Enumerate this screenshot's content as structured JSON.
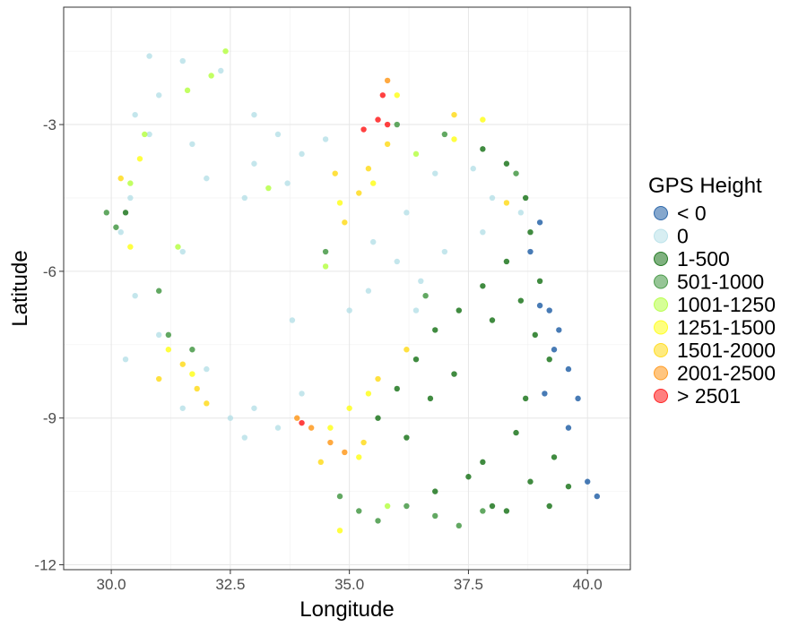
{
  "chart_data": {
    "type": "scatter",
    "title": "",
    "xlabel": "Longitude",
    "ylabel": "Latitude",
    "xlim": [
      29.0,
      40.9
    ],
    "ylim": [
      -12.1,
      -0.6
    ],
    "x_ticks": [
      30.0,
      32.5,
      35.0,
      37.5,
      40.0
    ],
    "x_tick_labels": [
      "30.0",
      "32.5",
      "35.0",
      "37.5",
      "40.0"
    ],
    "y_ticks": [
      -3,
      -6,
      -9,
      -12
    ],
    "y_tick_labels": [
      "-3",
      "-6",
      "-9",
      "-12"
    ],
    "grid": true,
    "legend": {
      "title": "GPS Height",
      "position": "right",
      "entries": [
        {
          "label": "< 0",
          "color": "#0b4f9c"
        },
        {
          "label": "0",
          "color": "#b0dde6"
        },
        {
          "label": "1-500",
          "color": "#006400"
        },
        {
          "label": "501-1000",
          "color": "#2e8b2e"
        },
        {
          "label": "1001-1250",
          "color": "#adff2f"
        },
        {
          "label": "1251-1500",
          "color": "#ffff00"
        },
        {
          "label": "1501-2000",
          "color": "#ffd700"
        },
        {
          "label": "2001-2500",
          "color": "#ff8c00"
        },
        {
          "label": "> 2501",
          "color": "#ff0000"
        }
      ]
    },
    "series": [
      {
        "name": "< 0",
        "color": "#0b4f9c",
        "points": [
          [
            39.0,
            -5.0
          ],
          [
            39.2,
            -6.8
          ],
          [
            39.4,
            -7.2
          ],
          [
            39.6,
            -8.0
          ],
          [
            39.1,
            -8.5
          ],
          [
            39.8,
            -8.6
          ],
          [
            40.0,
            -10.3
          ],
          [
            40.2,
            -10.6
          ],
          [
            39.6,
            -9.2
          ],
          [
            38.8,
            -5.6
          ],
          [
            39.3,
            -7.6
          ],
          [
            39.0,
            -6.7
          ]
        ]
      },
      {
        "name": "0",
        "color": "#b0dde6",
        "points": [
          [
            30.8,
            -1.6
          ],
          [
            31.5,
            -1.7
          ],
          [
            32.3,
            -1.9
          ],
          [
            31.0,
            -2.4
          ],
          [
            30.5,
            -2.8
          ],
          [
            30.8,
            -3.2
          ],
          [
            33.0,
            -2.8
          ],
          [
            33.5,
            -3.2
          ],
          [
            34.0,
            -3.6
          ],
          [
            34.5,
            -3.3
          ],
          [
            33.0,
            -3.8
          ],
          [
            32.8,
            -4.5
          ],
          [
            33.7,
            -4.2
          ],
          [
            32.0,
            -4.1
          ],
          [
            31.7,
            -3.4
          ],
          [
            30.4,
            -4.5
          ],
          [
            30.2,
            -5.2
          ],
          [
            35.5,
            -5.4
          ],
          [
            36.0,
            -5.8
          ],
          [
            36.5,
            -6.2
          ],
          [
            37.0,
            -5.6
          ],
          [
            36.2,
            -4.8
          ],
          [
            36.8,
            -4.0
          ],
          [
            35.4,
            -6.4
          ],
          [
            36.4,
            -6.8
          ],
          [
            31.5,
            -5.6
          ],
          [
            30.5,
            -6.5
          ],
          [
            31.0,
            -7.3
          ],
          [
            33.0,
            -8.8
          ],
          [
            33.5,
            -9.2
          ],
          [
            32.5,
            -9.0
          ],
          [
            34.0,
            -8.5
          ],
          [
            32.0,
            -8.0
          ],
          [
            33.8,
            -7.0
          ],
          [
            31.5,
            -8.8
          ],
          [
            32.8,
            -9.4
          ],
          [
            37.6,
            -3.9
          ],
          [
            38.0,
            -4.5
          ],
          [
            38.6,
            -4.8
          ],
          [
            37.8,
            -5.2
          ],
          [
            35.0,
            -6.8
          ],
          [
            30.3,
            -7.8
          ]
        ]
      },
      {
        "name": "1-500",
        "color": "#006400",
        "points": [
          [
            37.8,
            -3.5
          ],
          [
            38.3,
            -3.8
          ],
          [
            38.7,
            -4.5
          ],
          [
            38.8,
            -5.2
          ],
          [
            38.3,
            -5.8
          ],
          [
            37.8,
            -6.3
          ],
          [
            37.3,
            -6.8
          ],
          [
            36.8,
            -7.2
          ],
          [
            36.4,
            -7.8
          ],
          [
            36.0,
            -8.4
          ],
          [
            36.7,
            -8.6
          ],
          [
            37.2,
            -8.1
          ],
          [
            38.0,
            -7.0
          ],
          [
            38.6,
            -6.6
          ],
          [
            38.9,
            -7.3
          ],
          [
            39.2,
            -7.8
          ],
          [
            38.7,
            -8.6
          ],
          [
            38.5,
            -9.3
          ],
          [
            39.3,
            -9.8
          ],
          [
            38.8,
            -10.3
          ],
          [
            39.2,
            -10.8
          ],
          [
            38.0,
            -10.8
          ],
          [
            37.5,
            -10.2
          ],
          [
            36.8,
            -10.5
          ],
          [
            37.8,
            -9.9
          ],
          [
            38.3,
            -10.9
          ],
          [
            39.6,
            -10.4
          ],
          [
            35.6,
            -9.0
          ],
          [
            36.2,
            -9.4
          ],
          [
            39.0,
            -6.2
          ],
          [
            30.3,
            -4.8
          ]
        ]
      },
      {
        "name": "501-1000",
        "color": "#2e8b2e",
        "points": [
          [
            34.8,
            -10.6
          ],
          [
            35.2,
            -10.9
          ],
          [
            35.6,
            -11.1
          ],
          [
            36.2,
            -10.8
          ],
          [
            36.8,
            -11.0
          ],
          [
            37.3,
            -11.2
          ],
          [
            37.8,
            -10.9
          ],
          [
            31.2,
            -7.3
          ],
          [
            31.7,
            -7.6
          ],
          [
            29.9,
            -4.8
          ],
          [
            30.1,
            -5.1
          ],
          [
            31.0,
            -6.4
          ],
          [
            36.0,
            -3.0
          ],
          [
            37.0,
            -3.2
          ],
          [
            38.5,
            -4.0
          ],
          [
            36.6,
            -6.5
          ],
          [
            34.5,
            -5.6
          ]
        ]
      },
      {
        "name": "1001-1250",
        "color": "#adff2f",
        "points": [
          [
            31.6,
            -2.3
          ],
          [
            32.1,
            -2.0
          ],
          [
            30.7,
            -3.2
          ],
          [
            34.5,
            -5.9
          ],
          [
            33.3,
            -4.3
          ],
          [
            35.8,
            -10.8
          ],
          [
            36.4,
            -3.6
          ],
          [
            31.4,
            -5.5
          ],
          [
            30.4,
            -4.2
          ],
          [
            32.4,
            -1.5
          ]
        ]
      },
      {
        "name": "1251-1500",
        "color": "#ffff00",
        "points": [
          [
            35.0,
            -8.8
          ],
          [
            35.4,
            -8.5
          ],
          [
            34.6,
            -9.2
          ],
          [
            35.2,
            -9.8
          ],
          [
            34.8,
            -11.3
          ],
          [
            31.2,
            -7.6
          ],
          [
            31.7,
            -8.1
          ],
          [
            30.4,
            -5.5
          ],
          [
            30.6,
            -3.7
          ],
          [
            36.0,
            -2.4
          ],
          [
            34.8,
            -4.6
          ],
          [
            35.5,
            -4.2
          ],
          [
            37.2,
            -3.3
          ],
          [
            37.8,
            -2.9
          ]
        ]
      },
      {
        "name": "1501-2000",
        "color": "#ffd700",
        "points": [
          [
            34.7,
            -4.0
          ],
          [
            35.2,
            -4.4
          ],
          [
            35.4,
            -3.9
          ],
          [
            34.9,
            -5.0
          ],
          [
            31.5,
            -7.9
          ],
          [
            31.8,
            -8.4
          ],
          [
            32.0,
            -8.7
          ],
          [
            35.6,
            -8.2
          ],
          [
            36.2,
            -7.6
          ],
          [
            35.3,
            -9.5
          ],
          [
            34.4,
            -9.9
          ],
          [
            30.2,
            -4.1
          ],
          [
            35.8,
            -3.4
          ],
          [
            38.3,
            -4.6
          ],
          [
            37.2,
            -2.8
          ],
          [
            31.0,
            -8.2
          ]
        ]
      },
      {
        "name": "2001-2500",
        "color": "#ff8c00",
        "points": [
          [
            34.2,
            -9.2
          ],
          [
            34.6,
            -9.5
          ],
          [
            34.9,
            -9.7
          ],
          [
            35.8,
            -2.1
          ],
          [
            33.9,
            -9.0
          ]
        ]
      },
      {
        "name": "> 2501",
        "color": "#ff0000",
        "points": [
          [
            35.6,
            -2.9
          ],
          [
            35.8,
            -3.0
          ],
          [
            35.3,
            -3.1
          ],
          [
            34.0,
            -9.1
          ],
          [
            35.7,
            -2.4
          ]
        ]
      }
    ]
  }
}
